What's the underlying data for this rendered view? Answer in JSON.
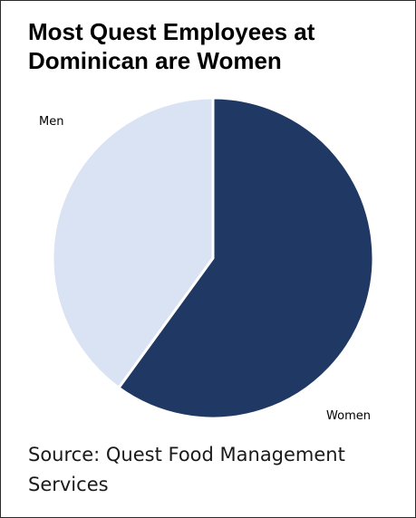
{
  "chart_data": {
    "type": "pie",
    "title": "Most Quest Employees at Dominican are Women",
    "slices": [
      {
        "label": "Women",
        "value": 60,
        "color": "#203864"
      },
      {
        "label": "Men",
        "value": 40,
        "color": "#dae3f3"
      }
    ],
    "start_angle_deg": 0,
    "direction": "clockwise",
    "legend": "none",
    "label_position": "outside"
  },
  "source_note": "Source: Quest Food Management Services"
}
